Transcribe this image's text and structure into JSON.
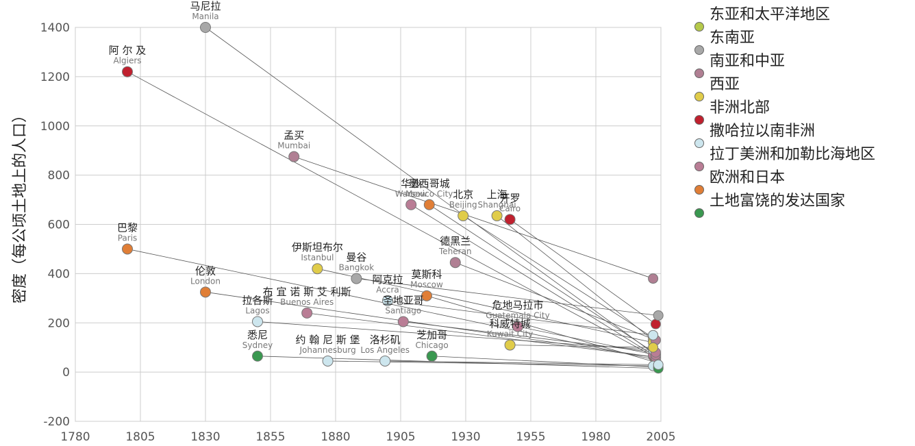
{
  "chart_data": {
    "type": "scatter",
    "ylabel": "密度（每公顷土地上的人口）",
    "xlim": [
      1780,
      2005
    ],
    "ylim": [
      -200,
      1400
    ],
    "x_ticks": [
      1780,
      1805,
      1830,
      1855,
      1880,
      1905,
      1930,
      1955,
      1980,
      2005
    ],
    "y_ticks": [
      -200,
      0,
      200,
      400,
      600,
      800,
      1000,
      1200,
      1400
    ],
    "grid": true,
    "legend_position": "right",
    "legend": [
      {
        "label": "东亚和太平洋地区",
        "color": "#b5c94a"
      },
      {
        "label": "东南亚",
        "color": "#a8a8a8"
      },
      {
        "label": "南亚和中亚",
        "color": "#b07f93"
      },
      {
        "label": "西亚",
        "color": "#e0cc4a"
      },
      {
        "label": "非洲北部",
        "color": "#c0202e"
      },
      {
        "label": "撒哈拉以南非洲",
        "color": "#cde6ee"
      },
      {
        "label": "拉丁美洲和加勒比海地区",
        "color": "#b97d95"
      },
      {
        "label": "欧洲和日本",
        "color": "#e07e36"
      },
      {
        "label": "土地富饶的发达国家",
        "color": "#3a9850"
      }
    ],
    "cities": [
      {
        "cn": "马尼拉",
        "en": "Manila",
        "region": "东南亚",
        "x": 1830,
        "y": 1400,
        "x_end": 2003,
        "y_end": 70
      },
      {
        "cn": "阿 尔 及",
        "en": "Algiers",
        "region": "非洲北部",
        "x": 1800,
        "y": 1220,
        "x_end": 2002,
        "y_end": 65
      },
      {
        "cn": "孟买",
        "en": "Mumbai",
        "region": "南亚和中亚",
        "x": 1864,
        "y": 875,
        "x_end": 2002,
        "y_end": 380
      },
      {
        "cn": "华沙",
        "en": "Warsaw",
        "region": "拉丁美洲和加勒比海地区",
        "x": 1909,
        "y": 680,
        "x_end": 2002,
        "y_end": 70
      },
      {
        "cn": "墨西哥城",
        "en": "Mexico City",
        "region": "欧洲和日本",
        "x": 1916,
        "y": 680,
        "x_end": 2003,
        "y_end": 75
      },
      {
        "cn": "北京",
        "en": "Beijing",
        "region": "西亚",
        "x": 1929,
        "y": 635,
        "x_end": 2002,
        "y_end": 140
      },
      {
        "cn": "上海",
        "en": "Shanghai",
        "region": "西亚",
        "x": 1942,
        "y": 635,
        "x_end": 2002,
        "y_end": 130
      },
      {
        "cn": "开罗",
        "en": "Cairo",
        "region": "非洲北部",
        "x": 1947,
        "y": 620,
        "x_end": 2003,
        "y_end": 195
      },
      {
        "cn": "巴黎",
        "en": "Paris",
        "region": "欧洲和日本",
        "x": 1800,
        "y": 500,
        "x_end": 2003,
        "y_end": 50
      },
      {
        "cn": "伊斯坦布尔",
        "en": "Istanbul",
        "region": "西亚",
        "x": 1873,
        "y": 420,
        "x_end": 2002,
        "y_end": 120
      },
      {
        "cn": "曼谷",
        "en": "Bangkok",
        "region": "东南亚",
        "x": 1888,
        "y": 380,
        "x_end": 2004,
        "y_end": 230
      },
      {
        "cn": "德黑兰",
        "en": "Teheran",
        "region": "南亚和中亚",
        "x": 1926,
        "y": 445,
        "x_end": 2003,
        "y_end": 130
      },
      {
        "cn": "莫斯科",
        "en": "Moscow",
        "region": "欧洲和日本",
        "x": 1915,
        "y": 310,
        "x_end": 2003,
        "y_end": 40
      },
      {
        "cn": "伦敦",
        "en": "London",
        "region": "欧洲和日本",
        "x": 1830,
        "y": 325,
        "x_end": 2003,
        "y_end": 60
      },
      {
        "cn": "阿克拉",
        "en": "Accra",
        "region": "撒哈拉以南非洲",
        "x": 1900,
        "y": 290,
        "x_end": 2002,
        "y_end": 150
      },
      {
        "cn": "布 宜 诺 斯 艾 利斯",
        "en": "Buenos Aires",
        "region": "拉丁美洲和加勒比海地区",
        "x": 1869,
        "y": 240,
        "x_end": 2003,
        "y_end": 60
      },
      {
        "cn": "危地马拉市",
        "en": "Guatemala City",
        "region": "拉丁美洲和加勒比海地区",
        "x": 1950,
        "y": 185,
        "x_end": 2003,
        "y_end": 70
      },
      {
        "cn": "拉各斯",
        "en": "Lagos",
        "region": "撒哈拉以南非洲",
        "x": 1850,
        "y": 205,
        "x_end": 2002,
        "y_end": 90
      },
      {
        "cn": "圣地亚哥",
        "en": "Santiago",
        "region": "拉丁美洲和加勒比海地区",
        "x": 1906,
        "y": 205,
        "x_end": 2003,
        "y_end": 80
      },
      {
        "cn": "约 翰 尼 斯 堡",
        "en": "Johannesburg",
        "region": "撒哈拉以南非洲",
        "x": 1877,
        "y": 45,
        "x_end": 2002,
        "y_end": 25
      },
      {
        "cn": "芝加哥",
        "en": "Chicago",
        "region": "土地富饶的发达国家",
        "x": 1917,
        "y": 65,
        "x_end": 2004,
        "y_end": 20
      },
      {
        "cn": "科威特城",
        "en": "Kuwait City",
        "region": "西亚",
        "x": 1947,
        "y": 110,
        "x_end": 2002,
        "y_end": 100
      },
      {
        "cn": "悉尼",
        "en": "Sydney",
        "region": "土地富饶的发达国家",
        "x": 1850,
        "y": 65,
        "x_end": 2004,
        "y_end": 15
      },
      {
        "cn": "洛杉矶",
        "en": "Los Angeles",
        "region": "撒哈拉以南非洲",
        "x": 1899,
        "y": 45,
        "x_end": 2004,
        "y_end": 30
      }
    ]
  }
}
